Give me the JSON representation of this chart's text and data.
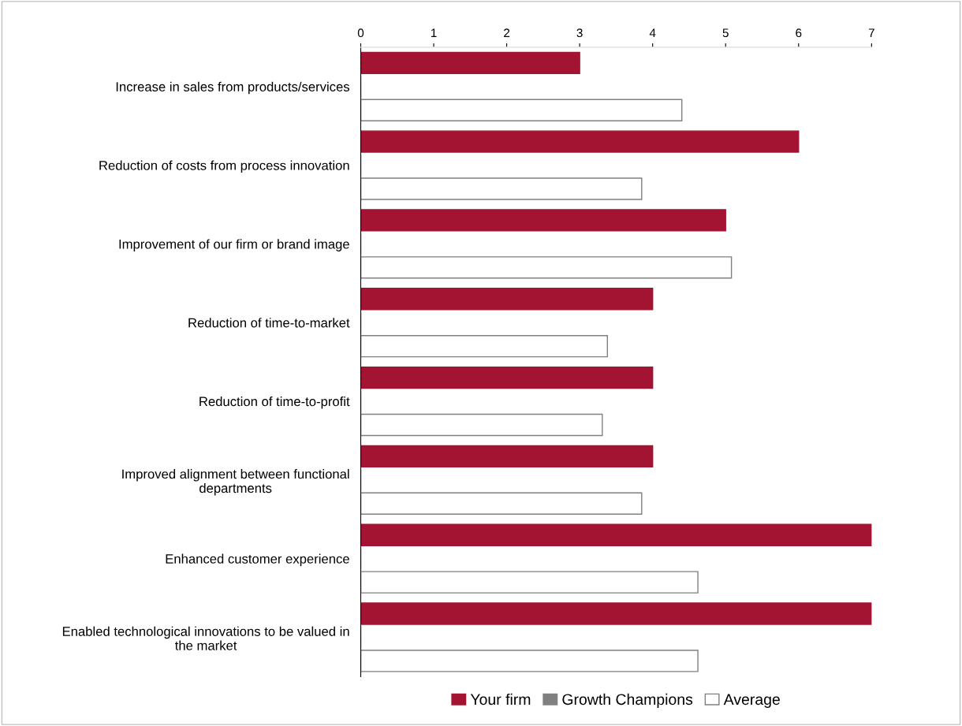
{
  "chart_data": {
    "type": "bar",
    "orientation": "horizontal",
    "categories": [
      "Increase in sales from products/services",
      "Reduction of costs from process innovation",
      "Improvement of our firm or brand image",
      "Reduction of time-to-market",
      "Reduction of time-to-profit",
      "Improved alignment between functional departments",
      "Enhanced customer experience",
      "Enabled technological innovations to be valued in the market"
    ],
    "series": [
      {
        "name": "Your firm",
        "color": "#a31432",
        "values": [
          3,
          6,
          5,
          4,
          4,
          4,
          7,
          7
        ]
      },
      {
        "name": "Growth Champions",
        "color": "#808080",
        "values": [
          0,
          0,
          0,
          0,
          0,
          0,
          0,
          0
        ]
      },
      {
        "name": "Average",
        "color": "#ffffff",
        "values": [
          4.4,
          3.85,
          5.08,
          3.38,
          3.31,
          3.85,
          4.62,
          4.62
        ]
      }
    ],
    "xlim": [
      0,
      7
    ],
    "xticks": [
      0,
      1,
      2,
      3,
      4,
      5,
      6,
      7
    ],
    "grid": false,
    "legend": "bottom"
  }
}
